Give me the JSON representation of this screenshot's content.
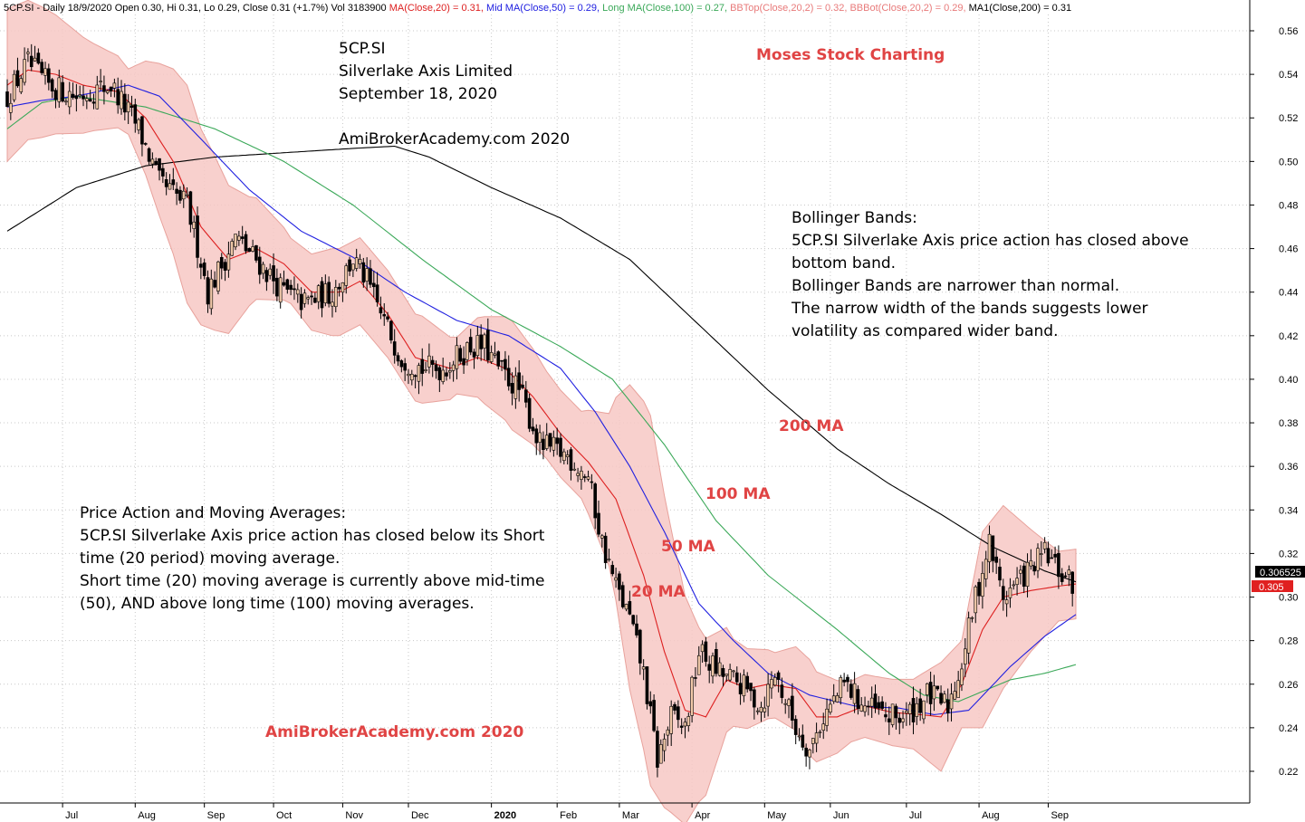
{
  "header": {
    "segments": [
      {
        "text": "5CP.SI - Daily 18/9/2020 Open 0.30, Hi 0.31, Lo 0.29, Close 0.31 (+1.7%) Vol 3183900 ",
        "color": "#000000"
      },
      {
        "text": "MA(Close,20) = 0.31, ",
        "color": "#dd2020"
      },
      {
        "text": "Mid MA(Close,50) = 0.29, ",
        "color": "#2020e0"
      },
      {
        "text": "Long MA(Close,100) = 0.27, ",
        "color": "#3aa858"
      },
      {
        "text": "BBTop(Close,20,2) = 0.32, ",
        "color": "#e87a7a"
      },
      {
        "text": "BBBot(Close,20,2) = 0.29, ",
        "color": "#e87a7a"
      },
      {
        "text": "MA1(Close,200) = 0.31",
        "color": "#000000"
      }
    ]
  },
  "annotations": {
    "title_block": "5CP.SI\nSilverlake Axis Limited\nSeptember 18, 2020\n\nAmiBrokerAcademy.com  2020",
    "brand": "Moses Stock Charting",
    "bollinger": "Bollinger Bands:\n5CP.SI Silverlake Axis price action has closed above\nbottom band.\nBollinger Bands are narrower than normal.\nThe narrow width of the bands suggests lower\nvolatility as compared wider band.",
    "price_action": "Price Action and Moving Averages:\n5CP.SI  Silverlake Axis price action has closed below its Short\ntime (20 period) moving average.\nShort time (20) moving average is currently above mid-time\n(50), AND above long time (100) moving averages.",
    "watermark": "AmiBrokerAcademy.com  2020",
    "ma200": "200 MA",
    "ma100": "100 MA",
    "ma50": "50 MA",
    "ma20": "20 MA"
  },
  "price_tags": {
    "ma_value": "0.306525",
    "close_value": "0.305"
  },
  "colors": {
    "ma20": "#dd2020",
    "ma50": "#2020e0",
    "ma100": "#3aa858",
    "ma200": "#000000",
    "band_fill": "#f7c8c4",
    "band_edge": "#e8a29c",
    "candle_up": "#f0c8a8",
    "candle_down": "#000000",
    "annotation_red": "#e04444",
    "tag_dark": "#000000",
    "tag_red": "#e02020"
  },
  "chart_data": {
    "type": "line",
    "symbol": "5CP.SI",
    "period": "Daily",
    "ylim": [
      0.2,
      0.57
    ],
    "y_ticks": [
      "0.22",
      "0.24",
      "0.26",
      "0.28",
      "0.30",
      "0.32",
      "0.34",
      "0.36",
      "0.38",
      "0.40",
      "0.42",
      "0.44",
      "0.46",
      "0.48",
      "0.50",
      "0.52",
      "0.54",
      "0.56"
    ],
    "x_ticks": [
      {
        "label": "Jul",
        "bar": 16
      },
      {
        "label": "Aug",
        "bar": 37
      },
      {
        "label": "Sep",
        "bar": 57
      },
      {
        "label": "Oct",
        "bar": 77
      },
      {
        "label": "Nov",
        "bar": 97
      },
      {
        "label": "Dec",
        "bar": 116
      },
      {
        "label": "2020",
        "bar": 140,
        "bold": true
      },
      {
        "label": "Feb",
        "bar": 159
      },
      {
        "label": "Mar",
        "bar": 177
      },
      {
        "label": "Apr",
        "bar": 198
      },
      {
        "label": "May",
        "bar": 219
      },
      {
        "label": "Jun",
        "bar": 238
      },
      {
        "label": "Jul",
        "bar": 260
      },
      {
        "label": "Aug",
        "bar": 281
      },
      {
        "label": "Sep",
        "bar": 301
      }
    ],
    "bar_count": 309,
    "close_anchors": [
      [
        0,
        0.53
      ],
      [
        6,
        0.545
      ],
      [
        12,
        0.535
      ],
      [
        20,
        0.53
      ],
      [
        30,
        0.535
      ],
      [
        38,
        0.515
      ],
      [
        44,
        0.49
      ],
      [
        52,
        0.48
      ],
      [
        56,
        0.455
      ],
      [
        58,
        0.44
      ],
      [
        66,
        0.465
      ],
      [
        72,
        0.455
      ],
      [
        80,
        0.44
      ],
      [
        86,
        0.435
      ],
      [
        94,
        0.44
      ],
      [
        100,
        0.455
      ],
      [
        104,
        0.445
      ],
      [
        108,
        0.43
      ],
      [
        114,
        0.41
      ],
      [
        120,
        0.405
      ],
      [
        126,
        0.405
      ],
      [
        134,
        0.415
      ],
      [
        138,
        0.415
      ],
      [
        142,
        0.405
      ],
      [
        148,
        0.395
      ],
      [
        154,
        0.37
      ],
      [
        162,
        0.365
      ],
      [
        168,
        0.355
      ],
      [
        172,
        0.325
      ],
      [
        176,
        0.305
      ],
      [
        180,
        0.29
      ],
      [
        184,
        0.265
      ],
      [
        188,
        0.225
      ],
      [
        192,
        0.245
      ],
      [
        196,
        0.24
      ],
      [
        200,
        0.275
      ],
      [
        206,
        0.265
      ],
      [
        212,
        0.26
      ],
      [
        218,
        0.25
      ],
      [
        222,
        0.265
      ],
      [
        228,
        0.24
      ],
      [
        232,
        0.23
      ],
      [
        236,
        0.245
      ],
      [
        242,
        0.26
      ],
      [
        248,
        0.25
      ],
      [
        254,
        0.245
      ],
      [
        260,
        0.245
      ],
      [
        266,
        0.255
      ],
      [
        272,
        0.25
      ],
      [
        276,
        0.27
      ],
      [
        280,
        0.3
      ],
      [
        284,
        0.325
      ],
      [
        288,
        0.3
      ],
      [
        294,
        0.31
      ],
      [
        300,
        0.32
      ],
      [
        305,
        0.31
      ],
      [
        309,
        0.305
      ]
    ],
    "series": [
      {
        "name": "MA(Close,20)",
        "window": 20,
        "final": 0.31
      },
      {
        "name": "Mid MA(Close,50)",
        "window": 50,
        "final": 0.29
      },
      {
        "name": "Long MA(Close,100)",
        "window": 100,
        "final": 0.27
      },
      {
        "name": "BBTop(Close,20,2)",
        "final": 0.32
      },
      {
        "name": "BBBot(Close,20,2)",
        "final": 0.29
      },
      {
        "name": "MA1(Close,200)",
        "window": 200,
        "final": 0.31
      }
    ],
    "ma200_anchors": [
      [
        0,
        0.468
      ],
      [
        20,
        0.488
      ],
      [
        40,
        0.498
      ],
      [
        60,
        0.502
      ],
      [
        80,
        0.504
      ],
      [
        100,
        0.506
      ],
      [
        112,
        0.507
      ],
      [
        122,
        0.502
      ],
      [
        140,
        0.488
      ],
      [
        160,
        0.474
      ],
      [
        180,
        0.455
      ],
      [
        200,
        0.425
      ],
      [
        220,
        0.395
      ],
      [
        240,
        0.368
      ],
      [
        255,
        0.352
      ],
      [
        270,
        0.338
      ],
      [
        285,
        0.323
      ],
      [
        300,
        0.312
      ],
      [
        309,
        0.307
      ]
    ],
    "ma100_anchors": [
      [
        0,
        0.515
      ],
      [
        10,
        0.527
      ],
      [
        20,
        0.53
      ],
      [
        40,
        0.525
      ],
      [
        60,
        0.515
      ],
      [
        80,
        0.5
      ],
      [
        100,
        0.48
      ],
      [
        120,
        0.455
      ],
      [
        140,
        0.432
      ],
      [
        160,
        0.415
      ],
      [
        175,
        0.4
      ],
      [
        190,
        0.37
      ],
      [
        205,
        0.335
      ],
      [
        220,
        0.31
      ],
      [
        240,
        0.285
      ],
      [
        255,
        0.265
      ],
      [
        265,
        0.255
      ],
      [
        275,
        0.252
      ],
      [
        290,
        0.262
      ],
      [
        300,
        0.265
      ],
      [
        309,
        0.269
      ]
    ],
    "ma50_anchors": [
      [
        0,
        0.525
      ],
      [
        10,
        0.528
      ],
      [
        20,
        0.53
      ],
      [
        35,
        0.535
      ],
      [
        44,
        0.53
      ],
      [
        55,
        0.512
      ],
      [
        70,
        0.487
      ],
      [
        85,
        0.468
      ],
      [
        100,
        0.456
      ],
      [
        115,
        0.44
      ],
      [
        130,
        0.427
      ],
      [
        145,
        0.42
      ],
      [
        160,
        0.405
      ],
      [
        170,
        0.385
      ],
      [
        180,
        0.36
      ],
      [
        190,
        0.33
      ],
      [
        200,
        0.297
      ],
      [
        210,
        0.28
      ],
      [
        220,
        0.265
      ],
      [
        232,
        0.255
      ],
      [
        245,
        0.25
      ],
      [
        258,
        0.249
      ],
      [
        268,
        0.246
      ],
      [
        278,
        0.248
      ],
      [
        290,
        0.268
      ],
      [
        300,
        0.282
      ],
      [
        309,
        0.292
      ]
    ],
    "ma20_anchors": [
      [
        0,
        0.535
      ],
      [
        6,
        0.542
      ],
      [
        14,
        0.54
      ],
      [
        22,
        0.535
      ],
      [
        32,
        0.532
      ],
      [
        40,
        0.52
      ],
      [
        48,
        0.5
      ],
      [
        56,
        0.47
      ],
      [
        64,
        0.455
      ],
      [
        72,
        0.46
      ],
      [
        80,
        0.453
      ],
      [
        88,
        0.44
      ],
      [
        96,
        0.44
      ],
      [
        102,
        0.445
      ],
      [
        110,
        0.43
      ],
      [
        118,
        0.41
      ],
      [
        128,
        0.405
      ],
      [
        136,
        0.41
      ],
      [
        144,
        0.405
      ],
      [
        152,
        0.392
      ],
      [
        160,
        0.375
      ],
      [
        168,
        0.362
      ],
      [
        176,
        0.345
      ],
      [
        184,
        0.31
      ],
      [
        190,
        0.275
      ],
      [
        196,
        0.248
      ],
      [
        202,
        0.245
      ],
      [
        208,
        0.262
      ],
      [
        214,
        0.258
      ],
      [
        220,
        0.26
      ],
      [
        228,
        0.258
      ],
      [
        234,
        0.245
      ],
      [
        240,
        0.245
      ],
      [
        248,
        0.25
      ],
      [
        256,
        0.247
      ],
      [
        264,
        0.246
      ],
      [
        270,
        0.245
      ],
      [
        276,
        0.26
      ],
      [
        282,
        0.285
      ],
      [
        288,
        0.3
      ],
      [
        296,
        0.303
      ],
      [
        304,
        0.305
      ],
      [
        309,
        0.306
      ]
    ],
    "band_width_anchors": [
      [
        0,
        0.035
      ],
      [
        10,
        0.03
      ],
      [
        25,
        0.02
      ],
      [
        35,
        0.015
      ],
      [
        44,
        0.035
      ],
      [
        52,
        0.05
      ],
      [
        60,
        0.04
      ],
      [
        70,
        0.025
      ],
      [
        82,
        0.015
      ],
      [
        94,
        0.02
      ],
      [
        104,
        0.02
      ],
      [
        112,
        0.02
      ],
      [
        120,
        0.02
      ],
      [
        130,
        0.013
      ],
      [
        138,
        0.02
      ],
      [
        146,
        0.025
      ],
      [
        156,
        0.02
      ],
      [
        166,
        0.02
      ],
      [
        174,
        0.035
      ],
      [
        180,
        0.07
      ],
      [
        186,
        0.085
      ],
      [
        192,
        0.065
      ],
      [
        200,
        0.04
      ],
      [
        210,
        0.02
      ],
      [
        222,
        0.015
      ],
      [
        232,
        0.022
      ],
      [
        244,
        0.014
      ],
      [
        254,
        0.015
      ],
      [
        262,
        0.016
      ],
      [
        270,
        0.025
      ],
      [
        276,
        0.02
      ],
      [
        282,
        0.045
      ],
      [
        288,
        0.042
      ],
      [
        296,
        0.028
      ],
      [
        304,
        0.016
      ],
      [
        309,
        0.016
      ]
    ]
  }
}
